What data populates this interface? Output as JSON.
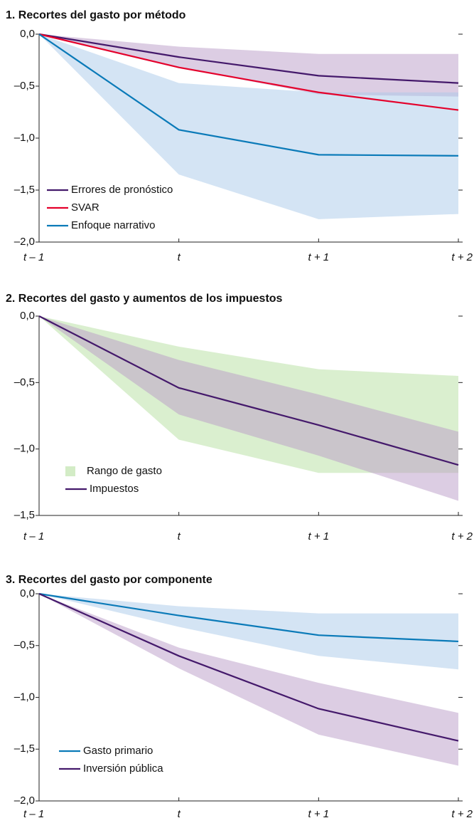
{
  "chart_data": [
    {
      "type": "line",
      "title": "1. Recortes del gasto por método",
      "categories": [
        "t – 1",
        "t",
        "t + 1",
        "t + 2"
      ],
      "ylim": [
        -2.0,
        0.0
      ],
      "yticks": [
        {
          "value": 0.0,
          "label": "0,0"
        },
        {
          "value": -0.5,
          "label": "–0,5"
        },
        {
          "value": -1.0,
          "label": "–1,0"
        },
        {
          "value": -1.5,
          "label": "–1,5"
        },
        {
          "value": -2.0,
          "label": "–2,0"
        }
      ],
      "legend": "lower left",
      "series": [
        {
          "name": "Errores de pronóstico",
          "color": "#44196b",
          "values": [
            0,
            -0.22,
            -0.4,
            -0.47
          ],
          "band_color": "#b99bc8",
          "upper": [
            0,
            -0.12,
            -0.19,
            -0.19
          ],
          "lower": [
            0,
            -0.32,
            -0.58,
            -0.6
          ]
        },
        {
          "name": "SVAR",
          "color": "#e4002b",
          "values": [
            0,
            -0.32,
            -0.56,
            -0.73
          ]
        },
        {
          "name": "Enfoque narrativo",
          "color": "#0a7ab8",
          "values": [
            0,
            -0.92,
            -1.16,
            -1.17
          ],
          "band_color": "#a9c9ea",
          "upper": [
            0,
            -0.47,
            -0.56,
            -0.56
          ],
          "lower": [
            0,
            -1.35,
            -1.78,
            -1.73
          ]
        }
      ]
    },
    {
      "type": "line",
      "title": "2. Recortes del gasto y aumentos de los impuestos",
      "categories": [
        "t – 1",
        "t",
        "t + 1",
        "t + 2"
      ],
      "ylim": [
        -1.5,
        0.0
      ],
      "yticks": [
        {
          "value": 0.0,
          "label": "0,0"
        },
        {
          "value": -0.5,
          "label": "–0,5"
        },
        {
          "value": -1.0,
          "label": "–1,0"
        },
        {
          "value": -1.5,
          "label": "–1,5"
        }
      ],
      "legend": "lower left",
      "series": [
        {
          "name": "Rango de gasto",
          "band_color": "#b5e0a0",
          "upper": [
            0,
            -0.23,
            -0.4,
            -0.45
          ],
          "lower": [
            0,
            -0.93,
            -1.18,
            -1.18
          ]
        },
        {
          "name": "Impuestos",
          "color": "#44196b",
          "values": [
            0,
            -0.54,
            -0.82,
            -1.12
          ],
          "band_color": "#b99bc8",
          "upper": [
            0,
            -0.33,
            -0.59,
            -0.87
          ],
          "lower": [
            0,
            -0.74,
            -1.05,
            -1.39
          ]
        }
      ]
    },
    {
      "type": "line",
      "title": "3. Recortes del gasto por componente",
      "categories": [
        "t – 1",
        "t",
        "t + 1",
        "t + 2"
      ],
      "ylim": [
        -2.0,
        0.0
      ],
      "yticks": [
        {
          "value": 0.0,
          "label": "0,0"
        },
        {
          "value": -0.5,
          "label": "–0,5"
        },
        {
          "value": -1.0,
          "label": "–1,0"
        },
        {
          "value": -1.5,
          "label": "–1,5"
        },
        {
          "value": -2.0,
          "label": "–2,0"
        }
      ],
      "legend": "lower left",
      "series": [
        {
          "name": "Gasto primario",
          "color": "#0a7ab8",
          "values": [
            0,
            -0.21,
            -0.4,
            -0.46
          ],
          "band_color": "#a9c9ea",
          "upper": [
            0,
            -0.12,
            -0.19,
            -0.19
          ],
          "lower": [
            0,
            -0.32,
            -0.6,
            -0.73
          ]
        },
        {
          "name": "Inversión pública",
          "color": "#44196b",
          "values": [
            0,
            -0.6,
            -1.11,
            -1.42
          ],
          "band_color": "#b99bc8",
          "upper": [
            0,
            -0.52,
            -0.86,
            -1.15
          ],
          "lower": [
            0,
            -0.72,
            -1.36,
            -1.66
          ]
        }
      ]
    }
  ]
}
